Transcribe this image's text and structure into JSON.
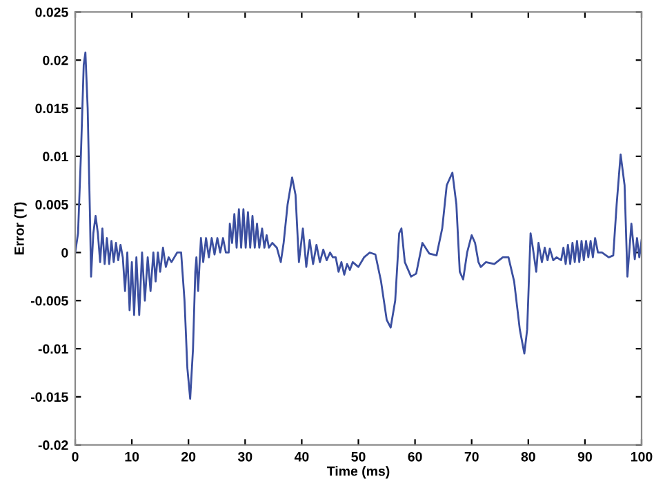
{
  "chart_data": {
    "type": "line",
    "xlabel": "Time (ms)",
    "ylabel": "Error (T)",
    "xlim": [
      0,
      100
    ],
    "ylim": [
      -0.02,
      0.025
    ],
    "xticks": [
      0,
      10,
      20,
      30,
      40,
      50,
      60,
      70,
      80,
      90,
      100
    ],
    "yticks": [
      -0.02,
      -0.015,
      -0.01,
      -0.005,
      0,
      0.005,
      0.01,
      0.015,
      0.02,
      0.025
    ],
    "grid": false,
    "legend": false,
    "marker": "none",
    "line_style": "solid",
    "series": [
      {
        "color": "#3b4fa0",
        "x": [
          0,
          0.5,
          1.0,
          1.5,
          1.8,
          2.2,
          2.6,
          2.8,
          3.2,
          3.6,
          4.0,
          4.4,
          4.8,
          5.2,
          5.6,
          6.0,
          6.4,
          6.8,
          7.2,
          7.6,
          8.0,
          8.4,
          8.8,
          9.2,
          9.6,
          10.0,
          10.4,
          10.8,
          11.3,
          11.8,
          12.3,
          12.8,
          13.3,
          13.8,
          14.2,
          14.6,
          15.0,
          15.5,
          16.0,
          16.5,
          17,
          18,
          18.7,
          19.3,
          19.8,
          20.3,
          20.8,
          21.2,
          21.4,
          21.7,
          22.2,
          22.6,
          23.1,
          23.6,
          24.1,
          24.6,
          25.1,
          25.6,
          26.1,
          26.6,
          27.1,
          27.3,
          27.7,
          28.1,
          28.5,
          28.9,
          29.3,
          29.7,
          30.1,
          30.5,
          30.9,
          31.3,
          31.7,
          32.1,
          32.5,
          33.0,
          33.4,
          33.8,
          34.2,
          34.8,
          35.6,
          36.3,
          36.8,
          37.5,
          38.3,
          38.9,
          39.5,
          40.2,
          40.8,
          41.4,
          42.0,
          42.6,
          43.2,
          43.8,
          44.4,
          45,
          45.5,
          46,
          46.5,
          47,
          47.5,
          48,
          48.5,
          49,
          50,
          51,
          52,
          53,
          54,
          55,
          55.7,
          56.5,
          57.2,
          57.6,
          58.2,
          59.3,
          60.2,
          61.3,
          62.5,
          63.8,
          64.8,
          65.6,
          66.6,
          67.3,
          67.9,
          68.5,
          69.2,
          70,
          70.6,
          71.2,
          71.6,
          72.5,
          74,
          75.5,
          76.5,
          77.5,
          78.5,
          79.3,
          79.8,
          80.4,
          80.8,
          81.4,
          81.8,
          82.4,
          82.9,
          83.4,
          83.8,
          84.4,
          85,
          85.8,
          86.2,
          86.6,
          87.0,
          87.4,
          87.8,
          88.2,
          88.6,
          89,
          89.4,
          89.8,
          90.2,
          90.6,
          91,
          91.4,
          91.8,
          92.3,
          93,
          94.2,
          95.0,
          95.6,
          96.3,
          97.0,
          97.5,
          98.2,
          98.8,
          99.2,
          99.6,
          100
        ],
        "values": [
          0,
          0.002,
          0.01,
          0.0195,
          0.0208,
          0.015,
          0.004,
          -0.0025,
          0.002,
          0.0038,
          0.002,
          -0.001,
          0.0025,
          -0.0012,
          0.0015,
          -0.0012,
          0.0012,
          -0.001,
          0.001,
          -0.0008,
          0.0008,
          -0.0005,
          -0.004,
          0.0,
          -0.006,
          -0.001,
          -0.0065,
          -0.0005,
          -0.0065,
          0.0,
          -0.005,
          -0.0005,
          -0.004,
          0.0,
          -0.003,
          0.0,
          -0.002,
          0.0005,
          -0.0015,
          -0.0005,
          -0.001,
          0.0,
          0.0,
          -0.005,
          -0.012,
          -0.0152,
          -0.01,
          -0.002,
          -0.0005,
          -0.004,
          0.0015,
          -0.001,
          0.0015,
          -0.0005,
          0.0015,
          -0.0002,
          0.0015,
          0.0,
          0.0015,
          0.0,
          0.0,
          0.003,
          0.001,
          0.004,
          0.0005,
          0.0045,
          0.0005,
          0.0045,
          0.0005,
          0.0042,
          0.0005,
          0.0038,
          0.0005,
          0.003,
          0.0005,
          0.0025,
          0.0005,
          0.0018,
          0.0005,
          0.001,
          0.0005,
          -0.001,
          0.001,
          0.005,
          0.0078,
          0.006,
          -0.001,
          0.0025,
          -0.0015,
          0.0013,
          -0.0012,
          0.0008,
          -0.001,
          0.0003,
          -0.0008,
          0.0,
          -0.0005,
          -0.0005,
          -0.002,
          -0.001,
          -0.0023,
          -0.0012,
          -0.0018,
          -0.001,
          -0.0015,
          -0.0005,
          0.0,
          -0.0002,
          -0.003,
          -0.007,
          -0.0078,
          -0.005,
          0.002,
          0.0025,
          -0.001,
          -0.0025,
          -0.0022,
          0.001,
          -0.0001,
          -0.0003,
          0.0025,
          0.007,
          0.0083,
          0.005,
          -0.002,
          -0.0028,
          0.0,
          0.0018,
          0.001,
          -0.001,
          -0.0015,
          -0.001,
          -0.0012,
          -0.0005,
          -0.0005,
          -0.003,
          -0.008,
          -0.0105,
          -0.008,
          0.002,
          0.0005,
          -0.002,
          0.001,
          -0.001,
          0.0005,
          -0.0008,
          0.0004,
          -0.0008,
          -0.0005,
          -0.0008,
          0.0005,
          -0.0012,
          0.0008,
          -0.0012,
          0.001,
          -0.001,
          0.0012,
          -0.001,
          0.0012,
          -0.0008,
          0.0012,
          -0.0005,
          0.0012,
          -0.0005,
          0.0015,
          0.0,
          0.0,
          -0.0005,
          -0.0003,
          0.005,
          0.0102,
          0.007,
          -0.0025,
          0.003,
          -0.0007,
          0.0015,
          -0.0005,
          0.0013
        ]
      }
    ]
  }
}
